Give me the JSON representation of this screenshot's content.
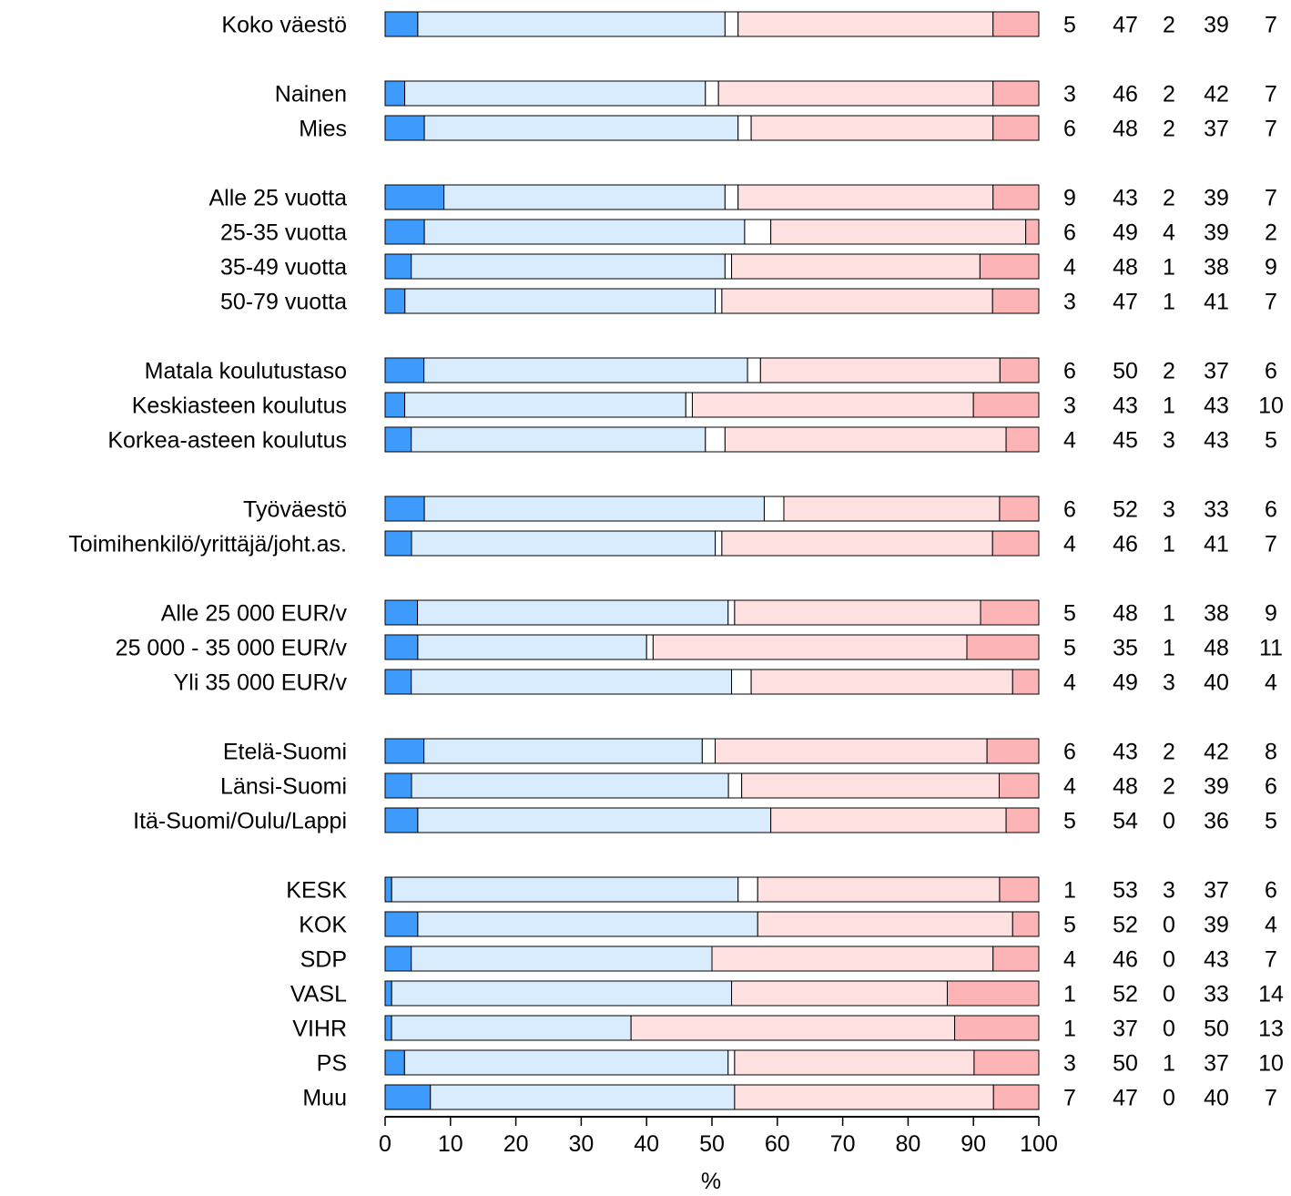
{
  "chart_data": {
    "type": "bar",
    "orientation": "horizontal",
    "stacked": true,
    "xlabel": "%",
    "xlim": [
      0,
      100
    ],
    "xticks": [
      0,
      10,
      20,
      30,
      40,
      50,
      60,
      70,
      80,
      90,
      100
    ],
    "grid": false,
    "legend": "none",
    "colors": [
      "#3f9bfb",
      "#d8ecfd",
      "#ffffff",
      "#ffe1e2",
      "#fdb4b6"
    ],
    "groups": [
      [
        "Koko väestö"
      ],
      [
        "Nainen",
        "Mies"
      ],
      [
        "Alle 25 vuotta",
        "25-35 vuotta",
        "35-49 vuotta",
        "50-79 vuotta"
      ],
      [
        "Matala koulutustaso",
        "Keskiasteen koulutus",
        "Korkea-asteen koulutus"
      ],
      [
        "Työväestö",
        "Toimihenkilö/yrittäjä/joht.as."
      ],
      [
        "Alle 25 000 EUR/v",
        "25 000 - 35 000 EUR/v",
        "Yli 35 000 EUR/v"
      ],
      [
        "Etelä-Suomi",
        "Länsi-Suomi",
        "Itä-Suomi/Oulu/Lappi"
      ],
      [
        "KESK",
        "KOK",
        "SDP",
        "VASL",
        "VIHR",
        "PS",
        "Muu"
      ]
    ],
    "categories": [
      "Koko väestö",
      "Nainen",
      "Mies",
      "Alle 25 vuotta",
      "25-35 vuotta",
      "35-49 vuotta",
      "50-79 vuotta",
      "Matala koulutustaso",
      "Keskiasteen koulutus",
      "Korkea-asteen koulutus",
      "Työväestö",
      "Toimihenkilö/yrittäjä/joht.as.",
      "Alle 25 000 EUR/v",
      "25 000 - 35 000 EUR/v",
      "Yli 35 000 EUR/v",
      "Etelä-Suomi",
      "Länsi-Suomi",
      "Itä-Suomi/Oulu/Lappi",
      "KESK",
      "KOK",
      "SDP",
      "VASL",
      "VIHR",
      "PS",
      "Muu"
    ],
    "rows": [
      [
        5,
        47,
        2,
        39,
        7
      ],
      [
        3,
        46,
        2,
        42,
        7
      ],
      [
        6,
        48,
        2,
        37,
        7
      ],
      [
        9,
        43,
        2,
        39,
        7
      ],
      [
        6,
        49,
        4,
        39,
        2
      ],
      [
        4,
        48,
        1,
        38,
        9
      ],
      [
        3,
        47,
        1,
        41,
        7
      ],
      [
        6,
        50,
        2,
        37,
        6
      ],
      [
        3,
        43,
        1,
        43,
        10
      ],
      [
        4,
        45,
        3,
        43,
        5
      ],
      [
        6,
        52,
        3,
        33,
        6
      ],
      [
        4,
        46,
        1,
        41,
        7
      ],
      [
        5,
        48,
        1,
        38,
        9
      ],
      [
        5,
        35,
        1,
        48,
        11
      ],
      [
        4,
        49,
        3,
        40,
        4
      ],
      [
        6,
        43,
        2,
        42,
        8
      ],
      [
        4,
        48,
        2,
        39,
        6
      ],
      [
        5,
        54,
        0,
        36,
        5
      ],
      [
        1,
        53,
        3,
        37,
        6
      ],
      [
        5,
        52,
        0,
        39,
        4
      ],
      [
        4,
        46,
        0,
        43,
        7
      ],
      [
        1,
        52,
        0,
        33,
        14
      ],
      [
        1,
        37,
        0,
        50,
        13
      ],
      [
        3,
        50,
        1,
        37,
        10
      ],
      [
        7,
        47,
        0,
        40,
        7
      ]
    ]
  }
}
